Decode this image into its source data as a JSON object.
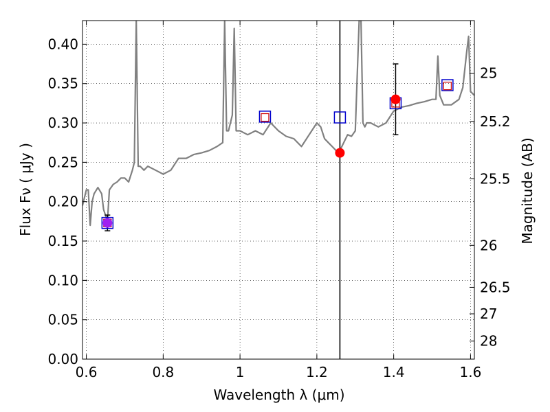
{
  "chart_data": {
    "type": "scatter",
    "title": "",
    "xlabel": "Wavelength  λ (μm)",
    "ylabel": "Flux  Fν  ( μJy )",
    "ylabel_right": "Magnitude (AB)",
    "xlim": [
      0.59,
      1.61
    ],
    "ylim": [
      0.0,
      0.43
    ],
    "grid": true,
    "x_ticks": [
      0.6,
      0.8,
      1.0,
      1.2,
      1.4,
      1.6
    ],
    "x_tick_labels": [
      "0.6",
      "0.8",
      "1",
      "1.2",
      "1.4",
      "1.6"
    ],
    "y_ticks": [
      0.0,
      0.05,
      0.1,
      0.15,
      0.2,
      0.25,
      0.3,
      0.35,
      0.4
    ],
    "y_tick_labels": [
      "0.00",
      "0.05",
      "0.10",
      "0.15",
      "0.20",
      "0.25",
      "0.30",
      "0.35",
      "0.40"
    ],
    "mag_ticks": [
      25,
      25.2,
      25.5,
      26,
      26.5,
      27,
      28
    ],
    "mag_tick_labels": [
      "25",
      "25.2",
      "25.5",
      "26",
      "26.5",
      "27",
      "28"
    ],
    "vertical_line_x": 1.26,
    "sed_model": {
      "color": "#808080",
      "x": [
        0.59,
        0.6,
        0.605,
        0.61,
        0.615,
        0.62,
        0.63,
        0.64,
        0.645,
        0.655,
        0.66,
        0.67,
        0.68,
        0.69,
        0.7,
        0.71,
        0.72,
        0.725,
        0.73,
        0.735,
        0.74,
        0.75,
        0.76,
        0.78,
        0.8,
        0.82,
        0.84,
        0.86,
        0.88,
        0.9,
        0.92,
        0.94,
        0.955,
        0.96,
        0.965,
        0.97,
        0.98,
        0.985,
        0.99,
        1.0,
        1.02,
        1.04,
        1.06,
        1.08,
        1.1,
        1.12,
        1.14,
        1.16,
        1.18,
        1.2,
        1.21,
        1.22,
        1.23,
        1.24,
        1.25,
        1.26,
        1.27,
        1.28,
        1.29,
        1.3,
        1.31,
        1.315,
        1.32,
        1.325,
        1.33,
        1.34,
        1.36,
        1.38,
        1.4,
        1.42,
        1.44,
        1.46,
        1.48,
        1.5,
        1.51,
        1.515,
        1.52,
        1.53,
        1.55,
        1.57,
        1.58,
        1.59,
        1.595,
        1.6,
        1.61
      ],
      "y": [
        0.195,
        0.215,
        0.215,
        0.17,
        0.2,
        0.21,
        0.218,
        0.21,
        0.19,
        0.175,
        0.215,
        0.222,
        0.225,
        0.23,
        0.23,
        0.225,
        0.24,
        0.25,
        0.43,
        0.245,
        0.245,
        0.24,
        0.245,
        0.24,
        0.235,
        0.24,
        0.255,
        0.255,
        0.26,
        0.262,
        0.265,
        0.27,
        0.275,
        0.43,
        0.29,
        0.29,
        0.31,
        0.42,
        0.29,
        0.29,
        0.285,
        0.29,
        0.285,
        0.3,
        0.29,
        0.283,
        0.28,
        0.27,
        0.285,
        0.3,
        0.295,
        0.28,
        0.275,
        0.27,
        0.265,
        0.265,
        0.275,
        0.285,
        0.283,
        0.29,
        0.43,
        0.43,
        0.3,
        0.295,
        0.3,
        0.3,
        0.295,
        0.3,
        0.315,
        0.32,
        0.322,
        0.325,
        0.327,
        0.33,
        0.33,
        0.385,
        0.335,
        0.323,
        0.323,
        0.33,
        0.345,
        0.39,
        0.41,
        0.34,
        0.335
      ]
    },
    "series": [
      {
        "name": "",
        "marker": "square-open",
        "color": "#0000cc",
        "x": [
          0.655,
          1.065,
          1.26,
          1.405,
          1.54
        ],
        "y": [
          0.173,
          0.308,
          0.307,
          0.325,
          0.348
        ]
      },
      {
        "name": "",
        "marker": "square-open-small",
        "color": "#cc0000",
        "x": [
          0.655,
          1.065,
          1.405,
          1.54
        ],
        "y": [
          0.173,
          0.307,
          0.325,
          0.347
        ]
      },
      {
        "name": "",
        "marker": "circle-filled",
        "color": "#ff0000",
        "x": [
          1.26,
          1.405
        ],
        "y": [
          0.262,
          0.33
        ]
      },
      {
        "name": "",
        "marker": "circle-filled",
        "color": "#a020f0",
        "x": [
          0.655
        ],
        "y": [
          0.173
        ]
      }
    ],
    "error_bars": [
      {
        "x": 0.655,
        "y": 0.173,
        "low": 0.163,
        "high": 0.183
      },
      {
        "x": 1.405,
        "y": 0.33,
        "low": 0.285,
        "high": 0.375
      }
    ]
  }
}
